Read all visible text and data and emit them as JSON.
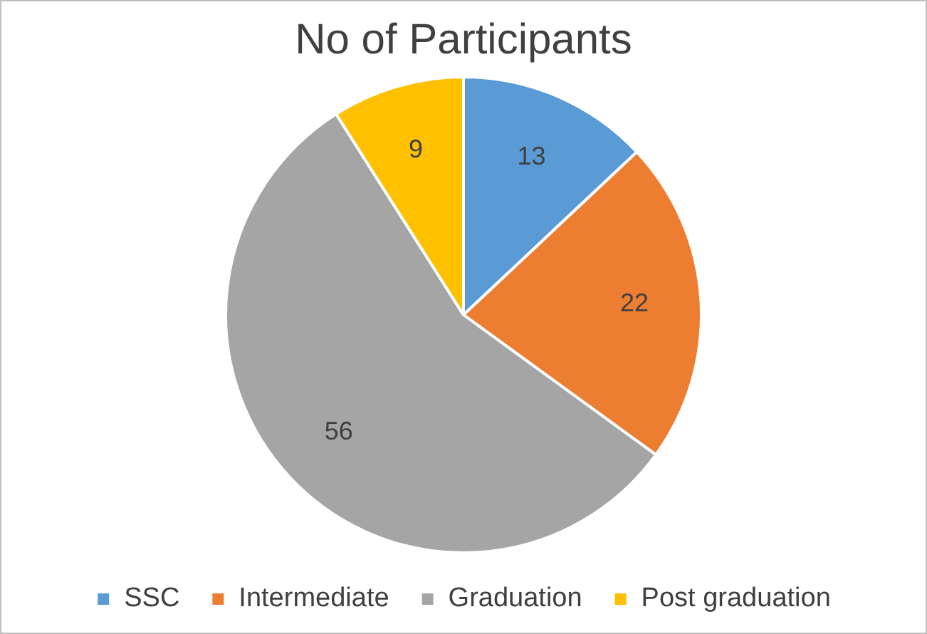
{
  "chart_data": {
    "type": "pie",
    "title": "No of Participants",
    "categories": [
      "SSC",
      "Intermediate",
      "Graduation",
      "Post graduation"
    ],
    "values": [
      13,
      22,
      56,
      9
    ],
    "colors": [
      "#5b9bd5",
      "#ed7d31",
      "#a5a5a5",
      "#ffc000"
    ],
    "data_labels": true,
    "legend": "bottom"
  }
}
